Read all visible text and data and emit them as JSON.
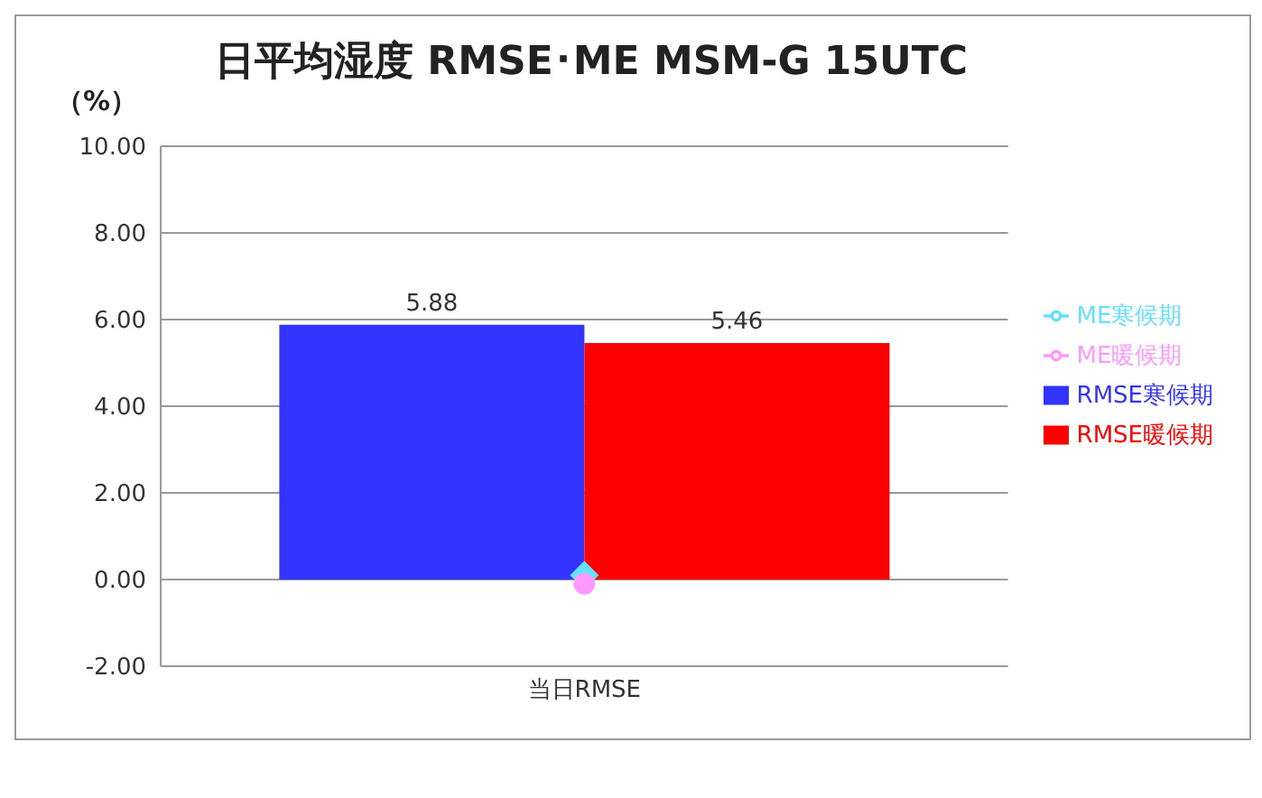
{
  "chart_data": {
    "type": "bar",
    "title": "日平均湿度 RMSE･ME MSM-G 15UTC",
    "ylabel": "（%）",
    "categories": [
      "当日RMSE"
    ],
    "series": [
      {
        "name": "RMSE寒候期",
        "color": "#3333ff",
        "values": [
          5.88
        ],
        "value_labels": [
          "5.88"
        ]
      },
      {
        "name": "RMSE暖候期",
        "color": "#ff0000",
        "values": [
          5.46
        ],
        "value_labels": [
          "5.46"
        ]
      },
      {
        "name": "ME寒候期",
        "type": "line",
        "color": "#66e0ff",
        "values": [
          0.1
        ],
        "marker": "diamond"
      },
      {
        "name": "ME暖候期",
        "type": "line",
        "color": "#ff99ff",
        "values": [
          -0.1
        ],
        "marker": "circle"
      }
    ],
    "ylim": [
      -2,
      10
    ],
    "yticks": [
      {
        "value": -2,
        "label": "-2.00"
      },
      {
        "value": 0,
        "label": "0.00"
      },
      {
        "value": 2,
        "label": "2.00"
      },
      {
        "value": 4,
        "label": "4.00"
      },
      {
        "value": 6,
        "label": "6.00"
      },
      {
        "value": 8,
        "label": "8.00"
      },
      {
        "value": 10,
        "label": "10.00"
      }
    ],
    "grid": "y",
    "legend": "right"
  }
}
